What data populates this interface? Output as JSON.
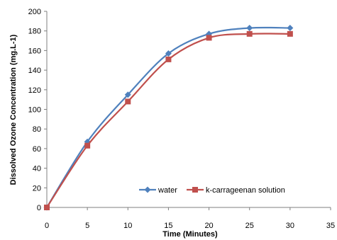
{
  "chart_data": {
    "type": "line",
    "xlabel": "Time (Minutes)",
    "ylabel": "Dissolved Ozone Concentration (mg.L-1)",
    "xlim": [
      0,
      35
    ],
    "ylim": [
      0,
      200
    ],
    "xticks": [
      0,
      5,
      10,
      15,
      20,
      25,
      30,
      35
    ],
    "yticks": [
      0,
      20,
      40,
      60,
      80,
      100,
      120,
      140,
      160,
      180,
      200
    ],
    "grid": false,
    "legend": "bottom-right",
    "x": [
      0,
      5,
      10,
      15,
      20,
      25,
      30
    ],
    "series": [
      {
        "name": "water",
        "values": [
          0,
          67,
          115,
          157,
          177,
          183,
          183
        ],
        "color": "#4f81bd",
        "marker": "diamond"
      },
      {
        "name": "k-carrageenan solution",
        "values": [
          0,
          63,
          108,
          151,
          173,
          177,
          177
        ],
        "color": "#c0504d",
        "marker": "square"
      }
    ]
  }
}
